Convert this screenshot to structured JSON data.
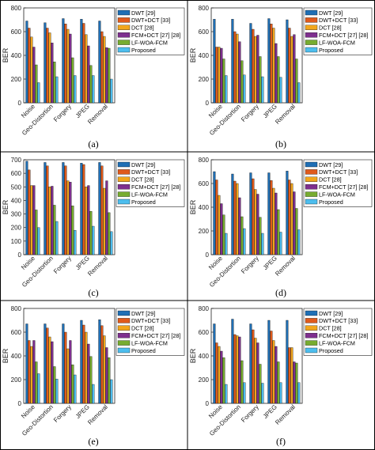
{
  "figure": {
    "panel_labels": [
      "(a)",
      "(b)",
      "(c)",
      "(d)",
      "(e)",
      "(f)"
    ]
  },
  "chart_data": [
    {
      "type": "bar",
      "panel": "(a)",
      "categories": [
        "Noise",
        "Geo-Distortion",
        "Forgery",
        "JPEG",
        "Removal"
      ],
      "xlabel": "",
      "ylabel": "BER",
      "ylim": [
        0,
        800
      ],
      "yticks": [
        0,
        200,
        400,
        600,
        800
      ],
      "grid": false,
      "legend": "top-right",
      "series": [
        {
          "name": "DWT [29]",
          "color": "#1f6fb5",
          "values": [
            690,
            675,
            710,
            705,
            690
          ]
        },
        {
          "name": "DWT+DCT [33]",
          "color": "#e05a1c",
          "values": [
            630,
            630,
            665,
            670,
            600
          ]
        },
        {
          "name": "DCT [28]",
          "color": "#f2a61c",
          "values": [
            555,
            590,
            620,
            575,
            560
          ]
        },
        {
          "name": "FCM+DCT [27] [28]",
          "color": "#7e2f8e",
          "values": [
            470,
            505,
            580,
            480,
            465
          ]
        },
        {
          "name": "LF-WOA-FCM",
          "color": "#77ac30",
          "values": [
            320,
            345,
            380,
            315,
            460
          ]
        },
        {
          "name": "Proposed",
          "color": "#4dbeee",
          "values": [
            170,
            220,
            230,
            230,
            200
          ]
        }
      ]
    },
    {
      "type": "bar",
      "panel": "(b)",
      "categories": [
        "Noise",
        "Geo-Distortion",
        "Forgery",
        "JPEG",
        "Removal"
      ],
      "xlabel": "",
      "ylabel": "BER",
      "ylim": [
        0,
        800
      ],
      "yticks": [
        0,
        200,
        400,
        600,
        800
      ],
      "grid": false,
      "legend": "top-right",
      "series": [
        {
          "name": "DWT [29]",
          "color": "#1f6fb5",
          "values": [
            705,
            705,
            670,
            710,
            700
          ]
        },
        {
          "name": "DWT+DCT [33]",
          "color": "#e05a1c",
          "values": [
            470,
            600,
            620,
            665,
            630
          ]
        },
        {
          "name": "DCT [28]",
          "color": "#f2a61c",
          "values": [
            470,
            580,
            560,
            630,
            560
          ]
        },
        {
          "name": "FCM+DCT [27] [28]",
          "color": "#7e2f8e",
          "values": [
            460,
            515,
            570,
            500,
            575
          ]
        },
        {
          "name": "LF-WOA-FCM",
          "color": "#77ac30",
          "values": [
            370,
            355,
            390,
            390,
            370
          ]
        },
        {
          "name": "Proposed",
          "color": "#4dbeee",
          "values": [
            230,
            235,
            220,
            215,
            170
          ]
        }
      ]
    },
    {
      "type": "bar",
      "panel": "(c)",
      "categories": [
        "Noise",
        "Geo-Distortion",
        "Forgery",
        "JPEG",
        "Removal"
      ],
      "xlabel": "",
      "ylabel": "BER",
      "ylim": [
        0,
        700
      ],
      "yticks": [
        0,
        100,
        200,
        300,
        400,
        500,
        600,
        700
      ],
      "grid": false,
      "legend": "top-right",
      "series": [
        {
          "name": "DWT [29]",
          "color": "#1f6fb5",
          "values": [
            690,
            680,
            680,
            675,
            680
          ]
        },
        {
          "name": "DWT+DCT [33]",
          "color": "#e05a1c",
          "values": [
            625,
            655,
            655,
            665,
            655
          ]
        },
        {
          "name": "DCT [28]",
          "color": "#f2a61c",
          "values": [
            510,
            500,
            545,
            500,
            490
          ]
        },
        {
          "name": "FCM+DCT [27] [28]",
          "color": "#7e2f8e",
          "values": [
            510,
            505,
            535,
            510,
            545
          ]
        },
        {
          "name": "LF-WOA-FCM",
          "color": "#77ac30",
          "values": [
            330,
            365,
            360,
            320,
            310
          ]
        },
        {
          "name": "Proposed",
          "color": "#4dbeee",
          "values": [
            200,
            245,
            180,
            210,
            170
          ]
        }
      ]
    },
    {
      "type": "bar",
      "panel": "(d)",
      "categories": [
        "Noise",
        "Geo-Distortion",
        "Forgery",
        "JPEG",
        "Removal"
      ],
      "xlabel": "",
      "ylabel": "BER",
      "ylim": [
        0,
        800
      ],
      "yticks": [
        0,
        200,
        400,
        600,
        800
      ],
      "grid": false,
      "legend": "top-right",
      "series": [
        {
          "name": "DWT [29]",
          "color": "#1f6fb5",
          "values": [
            700,
            680,
            690,
            690,
            705
          ]
        },
        {
          "name": "DWT+DCT [33]",
          "color": "#e05a1c",
          "values": [
            630,
            620,
            640,
            625,
            630
          ]
        },
        {
          "name": "DCT [28]",
          "color": "#f2a61c",
          "values": [
            500,
            600,
            550,
            560,
            600
          ]
        },
        {
          "name": "FCM+DCT [27] [28]",
          "color": "#7e2f8e",
          "values": [
            430,
            480,
            510,
            520,
            530
          ]
        },
        {
          "name": "LF-WOA-FCM",
          "color": "#77ac30",
          "values": [
            335,
            320,
            315,
            380,
            390
          ]
        },
        {
          "name": "Proposed",
          "color": "#4dbeee",
          "values": [
            180,
            220,
            180,
            190,
            210
          ]
        }
      ]
    },
    {
      "type": "bar",
      "panel": "(e)",
      "categories": [
        "Noise",
        "Geo-Distortion",
        "Forgery",
        "JPEG",
        "Removal"
      ],
      "xlabel": "",
      "ylabel": "BER",
      "ylim": [
        0,
        800
      ],
      "yticks": [
        0,
        200,
        400,
        600,
        800
      ],
      "grid": false,
      "legend": "top-right",
      "series": [
        {
          "name": "DWT [29]",
          "color": "#1f6fb5",
          "values": [
            670,
            670,
            670,
            700,
            705
          ]
        },
        {
          "name": "DWT+DCT [33]",
          "color": "#e05a1c",
          "values": [
            530,
            635,
            600,
            660,
            655
          ]
        },
        {
          "name": "DCT [28]",
          "color": "#f2a61c",
          "values": [
            480,
            560,
            460,
            600,
            570
          ]
        },
        {
          "name": "FCM+DCT [27] [28]",
          "color": "#7e2f8e",
          "values": [
            530,
            520,
            530,
            500,
            470
          ]
        },
        {
          "name": "LF-WOA-FCM",
          "color": "#77ac30",
          "values": [
            350,
            310,
            325,
            395,
            385
          ]
        },
        {
          "name": "Proposed",
          "color": "#4dbeee",
          "values": [
            250,
            205,
            240,
            160,
            200
          ]
        }
      ]
    },
    {
      "type": "bar",
      "panel": "(f)",
      "categories": [
        "Noise",
        "Geo-Distortion",
        "Forgery",
        "JPEG",
        "Removal"
      ],
      "xlabel": "",
      "ylabel": "BER",
      "ylim": [
        0,
        800
      ],
      "yticks": [
        0,
        200,
        400,
        600,
        800
      ],
      "grid": false,
      "legend": "top-right",
      "series": [
        {
          "name": "DWT [29]",
          "color": "#1f6fb5",
          "values": [
            670,
            710,
            670,
            700,
            700
          ]
        },
        {
          "name": "DWT+DCT [33]",
          "color": "#e05a1c",
          "values": [
            510,
            580,
            620,
            610,
            470
          ]
        },
        {
          "name": "DCT [28]",
          "color": "#f2a61c",
          "values": [
            480,
            570,
            550,
            530,
            470
          ]
        },
        {
          "name": "FCM+DCT [27] [28]",
          "color": "#7e2f8e",
          "values": [
            440,
            560,
            510,
            480,
            350
          ]
        },
        {
          "name": "LF-WOA-FCM",
          "color": "#77ac30",
          "values": [
            385,
            360,
            330,
            350,
            340
          ]
        },
        {
          "name": "Proposed",
          "color": "#4dbeee",
          "values": [
            160,
            175,
            170,
            175,
            175
          ]
        }
      ]
    }
  ]
}
